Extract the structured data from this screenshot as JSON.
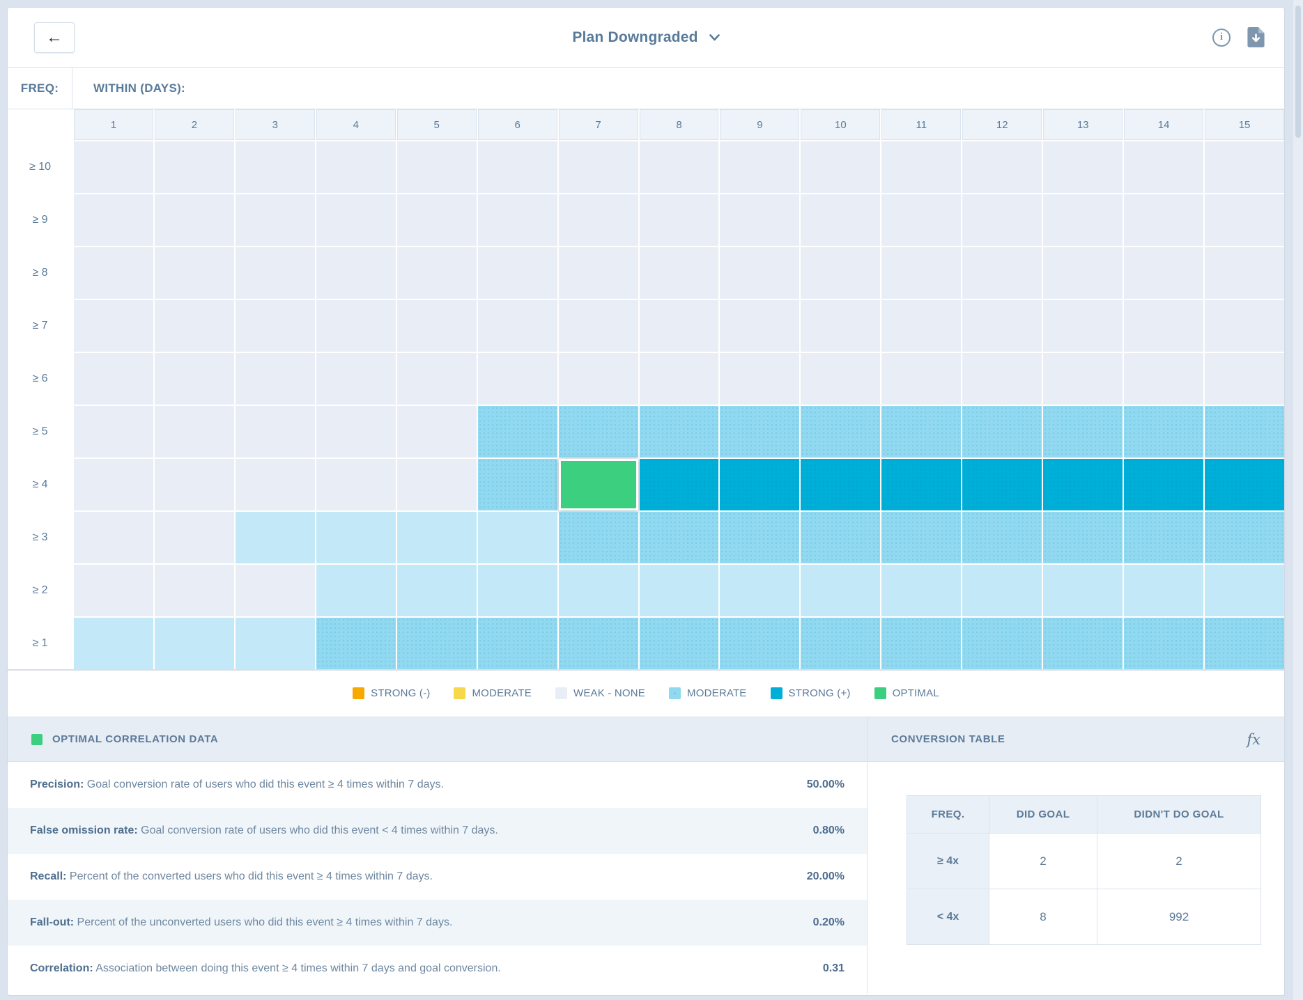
{
  "header": {
    "back_label": "←",
    "title": "Plan Downgraded",
    "info_icon": "info-circle",
    "download_icon": "file-download"
  },
  "matrix": {
    "freq_label": "FREQ:",
    "within_label": "WITHIN (DAYS):",
    "columns": [
      "1",
      "2",
      "3",
      "4",
      "5",
      "6",
      "7",
      "8",
      "9",
      "10",
      "11",
      "12",
      "13",
      "14",
      "15"
    ],
    "rows": [
      {
        "label": "≥ 10",
        "cells": [
          "weak",
          "weak",
          "weak",
          "weak",
          "weak",
          "weak",
          "weak",
          "weak",
          "weak",
          "weak",
          "weak",
          "weak",
          "weak",
          "weak",
          "weak"
        ]
      },
      {
        "label": "≥ 9",
        "cells": [
          "weak",
          "weak",
          "weak",
          "weak",
          "weak",
          "weak",
          "weak",
          "weak",
          "weak",
          "weak",
          "weak",
          "weak",
          "weak",
          "weak",
          "weak"
        ]
      },
      {
        "label": "≥ 8",
        "cells": [
          "weak",
          "weak",
          "weak",
          "weak",
          "weak",
          "weak",
          "weak",
          "weak",
          "weak",
          "weak",
          "weak",
          "weak",
          "weak",
          "weak",
          "weak"
        ]
      },
      {
        "label": "≥ 7",
        "cells": [
          "weak",
          "weak",
          "weak",
          "weak",
          "weak",
          "weak",
          "weak",
          "weak",
          "weak",
          "weak",
          "weak",
          "weak",
          "weak",
          "weak",
          "weak"
        ]
      },
      {
        "label": "≥ 6",
        "cells": [
          "weak",
          "weak",
          "weak",
          "weak",
          "weak",
          "weak",
          "weak",
          "weak",
          "weak",
          "weak",
          "weak",
          "weak",
          "weak",
          "weak",
          "weak"
        ]
      },
      {
        "label": "≥ 5",
        "cells": [
          "weak",
          "weak",
          "weak",
          "weak",
          "weak",
          "moderate",
          "moderate",
          "moderate",
          "moderate",
          "moderate",
          "moderate",
          "moderate",
          "moderate",
          "moderate",
          "moderate"
        ]
      },
      {
        "label": "≥ 4",
        "cells": [
          "weak",
          "weak",
          "weak",
          "weak",
          "weak",
          "moderate",
          "optimal",
          "strong",
          "strong",
          "strong",
          "strong",
          "strong",
          "strong",
          "strong",
          "strong"
        ]
      },
      {
        "label": "≥ 3",
        "cells": [
          "weak",
          "weak",
          "light",
          "light",
          "light",
          "light",
          "moderate",
          "moderate",
          "moderate",
          "moderate",
          "moderate",
          "moderate",
          "moderate",
          "moderate",
          "moderate"
        ]
      },
      {
        "label": "≥ 2",
        "cells": [
          "weak",
          "weak",
          "weak",
          "light",
          "light",
          "light",
          "light",
          "light",
          "light",
          "light",
          "light",
          "light",
          "light",
          "light",
          "light"
        ]
      },
      {
        "label": "≥ 1",
        "cells": [
          "light",
          "light",
          "light",
          "moderate",
          "moderate",
          "moderate",
          "moderate",
          "moderate",
          "moderate",
          "moderate",
          "moderate",
          "moderate",
          "moderate",
          "moderate",
          "moderate"
        ]
      }
    ]
  },
  "colors": {
    "weak": "#E9EEF6",
    "light": "#C3E9F8",
    "moderate": "#90D9F0",
    "strong": "#00AFD8",
    "optimal": "#3CCF80",
    "strong_negative": "#F8A900",
    "moderate_negative": "#F8D84B"
  },
  "legend": {
    "items": [
      {
        "label": "STRONG (-)",
        "color": "#F8A900",
        "hatched": false
      },
      {
        "label": "MODERATE",
        "color": "#F8D84B",
        "hatched": false
      },
      {
        "label": "WEAK - NONE",
        "color": "#E9EEF6",
        "hatched": false
      },
      {
        "label": "MODERATE",
        "color": "#90D9F0",
        "hatched": true
      },
      {
        "label": "STRONG (+)",
        "color": "#00AFD8",
        "hatched": false
      },
      {
        "label": "OPTIMAL",
        "color": "#3CCF80",
        "hatched": false
      }
    ]
  },
  "optimal_panel": {
    "title": "OPTIMAL CORRELATION DATA",
    "swatch_color": "#3CCF80",
    "rows": [
      {
        "label": "Precision:",
        "description": "Goal conversion rate of users who did this event ≥ 4 times within 7 days.",
        "value": "50.00%"
      },
      {
        "label": "False omission rate:",
        "description": "Goal conversion rate of users who did this event < 4 times within 7 days.",
        "value": "0.80%"
      },
      {
        "label": "Recall:",
        "description": "Percent of the converted users who did this event ≥ 4 times within 7 days.",
        "value": "20.00%"
      },
      {
        "label": "Fall-out:",
        "description": "Percent of the unconverted users who did this event ≥ 4 times within 7 days.",
        "value": "0.20%"
      },
      {
        "label": "Correlation:",
        "description": "Association between doing this event ≥ 4 times within 7 days and goal conversion.",
        "value": "0.31"
      }
    ]
  },
  "conversion_panel": {
    "title": "CONVERSION TABLE",
    "fx_label": "fx",
    "columns": [
      "FREQ.",
      "DID GOAL",
      "DIDN'T DO GOAL"
    ],
    "rows": [
      {
        "freq": "≥ 4x",
        "did_goal": "2",
        "didnt_do_goal": "2"
      },
      {
        "freq": "< 4x",
        "did_goal": "8",
        "didnt_do_goal": "992"
      }
    ]
  }
}
